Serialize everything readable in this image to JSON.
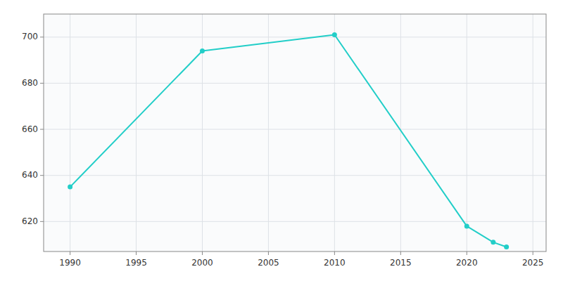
{
  "chart_data": {
    "type": "line",
    "x": [
      1990,
      2000,
      2010,
      2020,
      2022,
      2023
    ],
    "values": [
      635,
      694,
      701,
      618,
      611,
      609
    ],
    "color": "#22CEC8",
    "marker": "circle",
    "xlim": [
      1988,
      2026
    ],
    "ylim": [
      607,
      710
    ],
    "xticks": [
      1990,
      1995,
      2000,
      2005,
      2010,
      2015,
      2020,
      2025
    ],
    "yticks": [
      620,
      640,
      660,
      680,
      700
    ],
    "grid": true
  }
}
